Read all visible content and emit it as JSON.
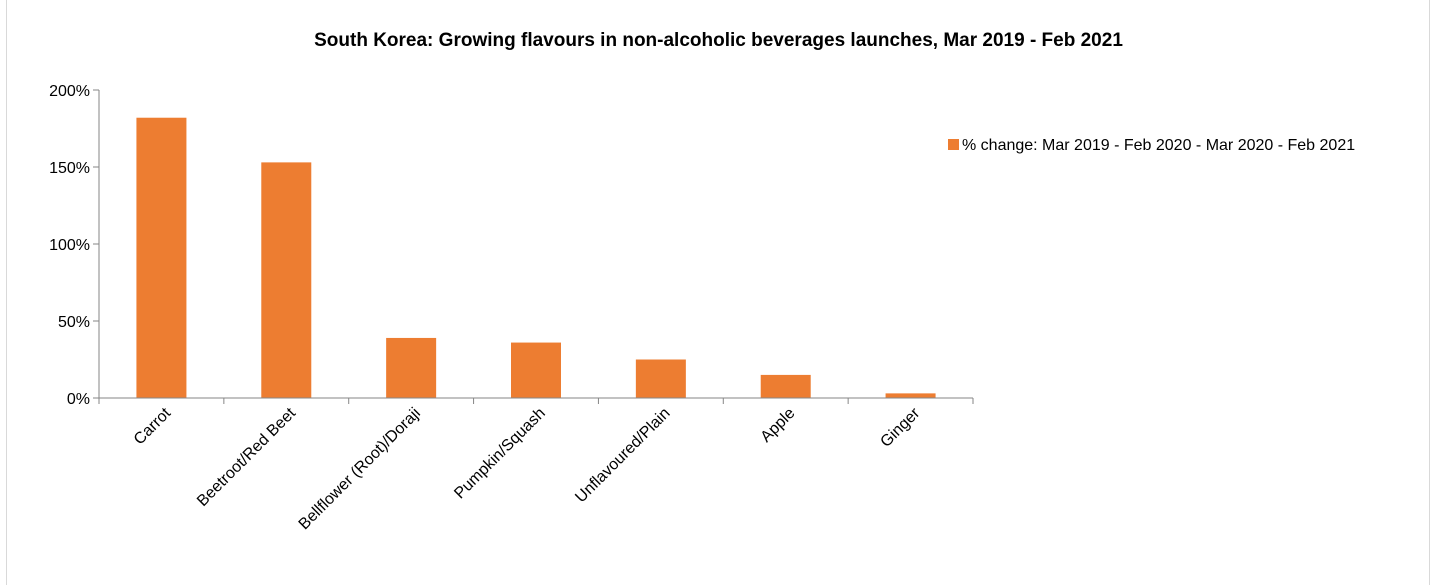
{
  "chart_data": {
    "type": "bar",
    "title": "South Korea: Growing flavours in non-alcoholic beverages launches, Mar 2019 - Feb 2021",
    "categories": [
      "Carrot",
      "Beetroot/Red Beet",
      "Bellflower (Root)/Doraji",
      "Pumpkin/Squash",
      "Unflavoured/Plain",
      "Apple",
      "Ginger"
    ],
    "series": [
      {
        "name": "% change: Mar 2019 - Feb 2020 - Mar 2020 - Feb 2021",
        "values": [
          182,
          153,
          39,
          36,
          25,
          15,
          3
        ],
        "color": "#ed7d31"
      }
    ],
    "ylim": [
      0,
      200
    ],
    "yticks": [
      "0%",
      "50%",
      "100%",
      "150%",
      "200%"
    ],
    "ytick_values": [
      0,
      50,
      100,
      150,
      200
    ],
    "grid": false,
    "legend_position": "right"
  }
}
